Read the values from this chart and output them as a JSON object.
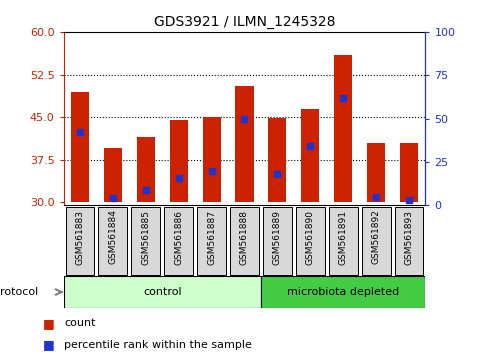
{
  "title": "GDS3921 / ILMN_1245328",
  "samples": [
    "GSM561883",
    "GSM561884",
    "GSM561885",
    "GSM561886",
    "GSM561887",
    "GSM561888",
    "GSM561889",
    "GSM561890",
    "GSM561891",
    "GSM561892",
    "GSM561893"
  ],
  "counts": [
    49.5,
    39.5,
    41.5,
    44.5,
    45.0,
    50.5,
    44.8,
    46.5,
    56.0,
    40.5,
    40.5
  ],
  "percentiles": [
    42,
    4,
    9,
    16,
    20,
    50,
    18,
    34,
    62,
    5,
    3
  ],
  "ylim_left": [
    29.5,
    60
  ],
  "ylim_right": [
    0,
    100
  ],
  "yticks_left": [
    30,
    37.5,
    45,
    52.5,
    60
  ],
  "yticks_right": [
    0,
    25,
    50,
    75,
    100
  ],
  "bar_color": "#cc2200",
  "blue_color": "#2233cc",
  "bar_bottom": 30,
  "bar_width": 0.55,
  "control_samples": 6,
  "protocol_label": "protocol",
  "control_label": "control",
  "microbiota_label": "microbiota depleted",
  "control_color": "#ccffcc",
  "microbiota_color": "#44cc44",
  "legend_count": "count",
  "legend_percentile": "percentile rank within the sample",
  "axis_color_left": "#cc2200",
  "axis_color_right": "#2233cc",
  "tick_label_bg": "#d8d8d8"
}
